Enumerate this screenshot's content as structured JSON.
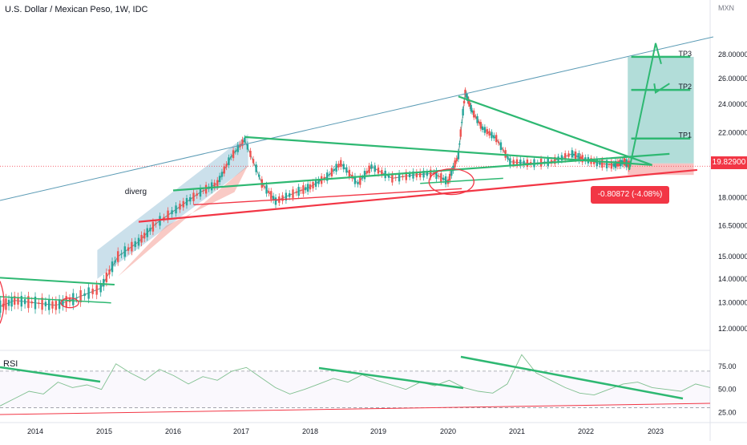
{
  "chart_data": [
    {
      "type": "candlestick",
      "title": "U.S. Dollar / Mexican Peso, 1W, IDC",
      "currency": "MXN",
      "x_tick_labels": [
        "2014",
        "2015",
        "2016",
        "2017",
        "2018",
        "2019",
        "2020",
        "2021",
        "2022",
        "2023"
      ],
      "y_tick_labels": [
        "28.00000",
        "26.00000",
        "24.00000",
        "22.00000",
        "19.82900",
        "18.00000",
        "16.50000",
        "15.00000",
        "14.00000",
        "13.00000",
        "12.00000"
      ],
      "ylim": [
        11.5,
        29.5
      ],
      "y_scale": "log",
      "last_price": "19.82900",
      "price_series": {
        "x": [
          2013.45,
          2013.7,
          2014.0,
          2014.3,
          2014.6,
          2014.95,
          2015.2,
          2015.5,
          2015.75,
          2016.1,
          2016.4,
          2016.65,
          2016.85,
          2017.05,
          2017.3,
          2017.5,
          2017.8,
          2018.0,
          2018.25,
          2018.45,
          2018.7,
          2018.9,
          2019.2,
          2019.5,
          2019.8,
          2020.0,
          2020.15,
          2020.25,
          2020.35,
          2020.5,
          2020.7,
          2020.9,
          2021.2,
          2021.5,
          2021.8,
          2021.95,
          2022.2,
          2022.4,
          2022.55,
          2022.65
        ],
        "y": [
          12.8,
          13.1,
          13.0,
          12.9,
          13.2,
          13.6,
          15.0,
          15.7,
          16.6,
          17.5,
          18.3,
          18.8,
          20.4,
          21.5,
          18.8,
          17.8,
          18.3,
          18.6,
          19.2,
          20.0,
          18.8,
          19.8,
          19.1,
          19.3,
          19.4,
          18.9,
          20.5,
          24.9,
          23.5,
          22.3,
          21.6,
          20.1,
          20.0,
          20.1,
          20.6,
          20.3,
          20.0,
          19.9,
          20.1,
          19.83
        ]
      },
      "annotations": [
        "diverg",
        "TP1",
        "TP2",
        "TP3",
        "-0.80872 (-4.08%) -8087.2"
      ],
      "take_profit_levels": [
        {
          "name": "TP1",
          "value": 21.6
        },
        {
          "name": "TP2",
          "value": 25.1
        },
        {
          "name": "TP3",
          "value": 27.8
        }
      ],
      "measure_label": "-0.80872 (-4.08%) -8087.2",
      "colors": {
        "up": "#26a69a",
        "down": "#ef5350",
        "trend_green": "#2eb872",
        "trend_red": "#f23645",
        "channel_blue": "#5b9bb5",
        "target_box": "#9fd4cf",
        "last_price_label": "#f23645"
      }
    },
    {
      "type": "line",
      "title": "RSI",
      "y_tick_labels": [
        "75.00",
        "50.00",
        "25.00"
      ],
      "levels": [
        70,
        30
      ],
      "ylim": [
        20,
        90
      ],
      "series": [
        {
          "values": [
            32,
            40,
            48,
            45,
            58,
            52,
            55,
            50,
            78,
            68,
            60,
            72,
            65,
            56,
            64,
            60,
            70,
            74,
            63,
            52,
            45,
            50,
            56,
            62,
            58,
            66,
            60,
            55,
            50,
            58,
            54,
            60,
            52,
            48,
            46,
            56,
            88,
            68,
            60,
            52,
            46,
            44,
            50,
            56,
            58,
            52,
            50,
            48,
            56,
            52
          ]
        }
      ]
    }
  ]
}
